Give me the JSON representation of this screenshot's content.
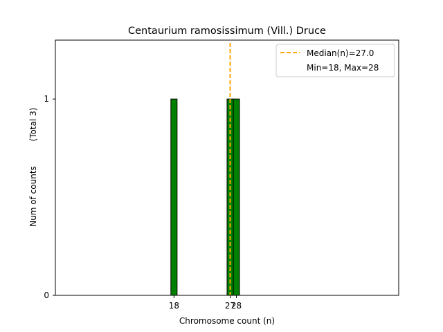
{
  "chart_data": {
    "type": "bar",
    "title": "Centaurium ramosissimum (Vill.) Druce",
    "xlabel": "Chromosome count (n)",
    "ylabel": "Num of counts",
    "ylabel_total": "(Total 3)",
    "bars": [
      {
        "x": 18,
        "count": 1
      },
      {
        "x": 27,
        "count": 1
      },
      {
        "x": 28,
        "count": 1
      }
    ],
    "xticks": [
      {
        "value": 18,
        "label": "18"
      },
      {
        "value": 27,
        "label": "27"
      },
      {
        "value": 28,
        "label": "28"
      }
    ],
    "yticks": [
      0,
      1
    ],
    "ylim": [
      0,
      1.3
    ],
    "xlim": [
      -1,
      54
    ],
    "bar_width": 1,
    "median_line": {
      "x": 27.0,
      "label": "Median(n)=27.0",
      "color": "#FFA500"
    },
    "legend": {
      "placement": "top-right",
      "extra_text": "Min=18, Max=28"
    },
    "bar_color": "#008000",
    "bar_edge_color": "#000000",
    "grid": false
  }
}
